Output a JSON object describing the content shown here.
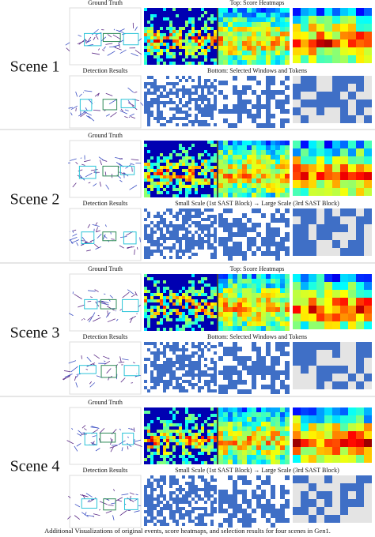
{
  "figure": {
    "scenes": [
      {
        "name": "Scene 1",
        "upper_label": "Ground Truth",
        "lower_label": "Detection Results",
        "top_caption": "Top: Score Heatmaps",
        "middle_caption": "Bottom: Selected Windows and Tokens"
      },
      {
        "name": "Scene 2",
        "upper_label": "Ground Truth",
        "lower_label": "Detection Results",
        "middle_caption": "Small Scale (1st SAST Block) → Large Scale (3rd SAST Block)"
      },
      {
        "name": "Scene 3",
        "upper_label": "Ground Truth",
        "lower_label": "Detection Results",
        "top_caption": "Top: Score Heatmaps",
        "middle_caption": "Bottom: Selected Windows and Tokens"
      },
      {
        "name": "Scene 4",
        "upper_label": "Ground Truth",
        "lower_label": "Detection Results",
        "middle_caption": "Small Scale (1st SAST Block) → Large Scale (3rd SAST Block)"
      }
    ],
    "caption": "Additional Visualizations of original events, score heatmaps, and selection results for four scenes in Gen1."
  }
}
